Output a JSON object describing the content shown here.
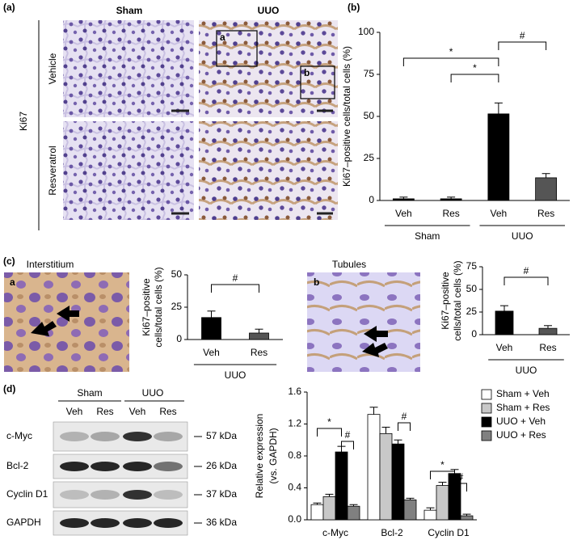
{
  "panels": {
    "a": "(a)",
    "b": "(b)",
    "c": "(c)",
    "d": "(d)"
  },
  "panel_a": {
    "columns": [
      "Sham",
      "UUO"
    ],
    "rows": [
      "Vehicle",
      "Resveratrol"
    ],
    "stain": "Ki67",
    "insets": [
      "a",
      "b"
    ]
  },
  "panel_c": {
    "images": [
      {
        "title": "Interstitium",
        "inset": "a"
      },
      {
        "title": "Tubules",
        "inset": "b"
      }
    ]
  },
  "blot": {
    "groups": [
      "Sham",
      "UUO"
    ],
    "lanes": [
      "Veh",
      "Res",
      "Veh",
      "Res"
    ],
    "rows": [
      {
        "protein": "c-Myc",
        "marker": "57 kDa"
      },
      {
        "protein": "Bcl-2",
        "marker": "26 kDa"
      },
      {
        "protein": "Cyclin D1",
        "marker": "37 kDa"
      },
      {
        "protein": "GAPDH",
        "marker": "36 kDa"
      }
    ]
  },
  "chart_data": [
    {
      "type": "bar",
      "ylabel": [
        "Ki67–positive cells/total cells (%)"
      ],
      "categories": [
        "Veh",
        "Res",
        "Veh",
        "Res"
      ],
      "values": [
        1,
        1,
        51.5,
        13.5
      ],
      "errors": [
        1,
        1,
        6.5,
        2.5
      ],
      "colors": [
        "#000000",
        "#000000",
        "#000000",
        "#555555"
      ],
      "groups": [
        {
          "label": "Sham",
          "from": 0,
          "to": 1
        },
        {
          "label": "UUO",
          "from": 2,
          "to": 3
        }
      ],
      "annotations": [
        {
          "text": "#",
          "from": 2,
          "to": 3
        },
        {
          "text": "*",
          "from": 0,
          "to": 2
        },
        {
          "text": "*",
          "from": 1,
          "to": 2
        }
      ],
      "ylim": [
        0,
        100
      ],
      "yticks": [
        0,
        25,
        50,
        75,
        100
      ]
    },
    {
      "type": "bar",
      "ylabel": [
        "Ki67–positive",
        "cells/total cells (%)"
      ],
      "categories": [
        "Veh",
        "Res"
      ],
      "values": [
        17,
        5
      ],
      "errors": [
        5,
        3
      ],
      "colors": [
        "#000000",
        "#555555"
      ],
      "groups": [
        {
          "label": "UUO",
          "from": 0,
          "to": 1
        }
      ],
      "annotations": [
        {
          "text": "#",
          "from": 0,
          "to": 1
        }
      ],
      "ylim": [
        0,
        50
      ],
      "yticks": [
        0,
        25,
        50
      ]
    },
    {
      "type": "bar",
      "ylabel": [
        "Ki67–positive",
        "cells/total cells (%)"
      ],
      "categories": [
        "Veh",
        "Res"
      ],
      "values": [
        26,
        7
      ],
      "errors": [
        6,
        3
      ],
      "colors": [
        "#000000",
        "#555555"
      ],
      "groups": [
        {
          "label": "UUO",
          "from": 0,
          "to": 1
        }
      ],
      "annotations": [
        {
          "text": "#",
          "from": 0,
          "to": 1
        }
      ],
      "ylim": [
        0,
        75
      ],
      "yticks": [
        0,
        25,
        50,
        75
      ]
    },
    {
      "type": "bar",
      "ylabel": [
        "Relative expression",
        "(vs. GAPDH)"
      ],
      "categories": [
        "c-Myc",
        "Bcl-2",
        "Cyclin D1"
      ],
      "series": [
        {
          "name": "Sham + Veh",
          "color": "#ffffff",
          "values": [
            0.19,
            1.32,
            0.12
          ],
          "errors": [
            0.02,
            0.09,
            0.03
          ]
        },
        {
          "name": "Sham + Res",
          "color": "#c8c8c8",
          "values": [
            0.29,
            1.08,
            0.43
          ],
          "errors": [
            0.03,
            0.08,
            0.04
          ]
        },
        {
          "name": "UUO + Veh",
          "color": "#000000",
          "values": [
            0.85,
            0.95,
            0.58
          ],
          "errors": [
            0.07,
            0.05,
            0.05
          ]
        },
        {
          "name": "UUO + Res",
          "color": "#808080",
          "values": [
            0.17,
            0.25,
            0.05
          ],
          "errors": [
            0.02,
            0.02,
            0.02
          ]
        }
      ],
      "annotations": [
        {
          "text": "*",
          "category": 0,
          "from": 0,
          "to": 2
        },
        {
          "text": "#",
          "category": 0,
          "from": 2,
          "to": 3
        },
        {
          "text": "#",
          "category": 1,
          "from": 2,
          "to": 3
        },
        {
          "text": "*",
          "category": 2,
          "from": 0,
          "to": 2
        },
        {
          "text": "#",
          "category": 2,
          "from": 2,
          "to": 3
        }
      ],
      "ylim": [
        0,
        1.6
      ],
      "yticks": [
        {
          "value": 0,
          "label": "0.0"
        },
        0.4,
        0.8,
        1.2,
        1.6
      ]
    }
  ]
}
